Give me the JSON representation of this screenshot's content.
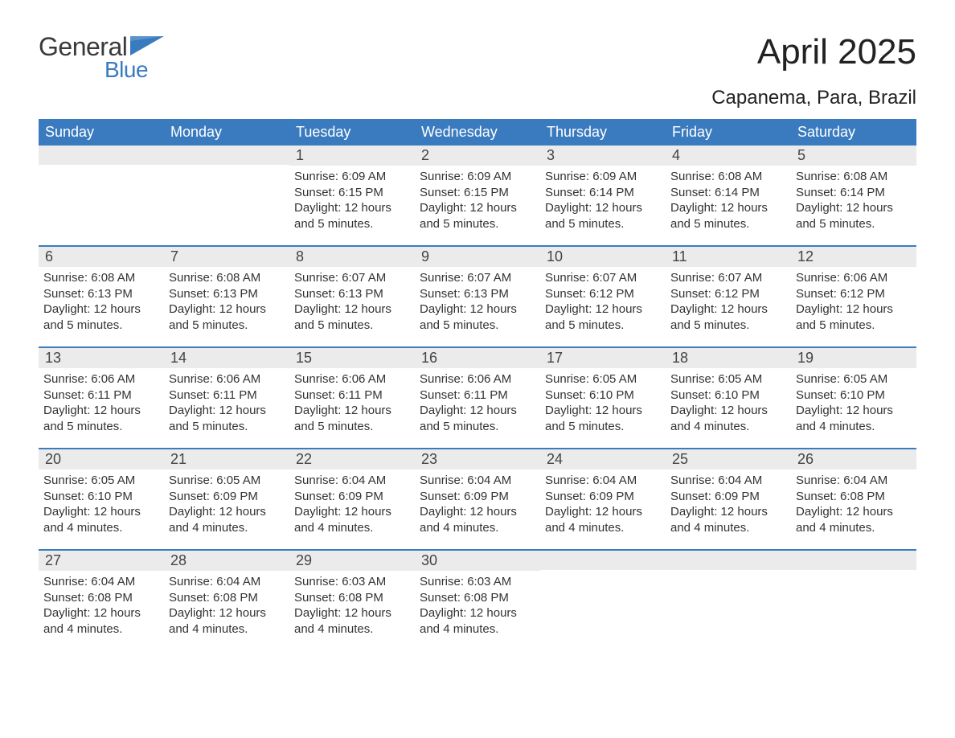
{
  "logo": {
    "word1": "General",
    "word2": "Blue"
  },
  "title": "April 2025",
  "location": "Capanema, Para, Brazil",
  "colors": {
    "header_bg": "#3a7bbf",
    "header_text": "#ffffff",
    "daynum_bg": "#ebebeb",
    "body_text": "#333333",
    "rule": "#3a7bbf",
    "page_bg": "#ffffff",
    "logo_gray": "#3a3a3a",
    "logo_blue": "#3a7bbf"
  },
  "typography": {
    "title_fontsize": 44,
    "location_fontsize": 24,
    "dow_fontsize": 18,
    "daynum_fontsize": 18,
    "body_fontsize": 15
  },
  "days_of_week": [
    "Sunday",
    "Monday",
    "Tuesday",
    "Wednesday",
    "Thursday",
    "Friday",
    "Saturday"
  ],
  "labels": {
    "sunrise": "Sunrise: ",
    "sunset": "Sunset: ",
    "daylight": "Daylight: "
  },
  "weeks": [
    [
      null,
      null,
      {
        "n": "1",
        "sunrise": "6:09 AM",
        "sunset": "6:15 PM",
        "daylight": "12 hours and 5 minutes."
      },
      {
        "n": "2",
        "sunrise": "6:09 AM",
        "sunset": "6:15 PM",
        "daylight": "12 hours and 5 minutes."
      },
      {
        "n": "3",
        "sunrise": "6:09 AM",
        "sunset": "6:14 PM",
        "daylight": "12 hours and 5 minutes."
      },
      {
        "n": "4",
        "sunrise": "6:08 AM",
        "sunset": "6:14 PM",
        "daylight": "12 hours and 5 minutes."
      },
      {
        "n": "5",
        "sunrise": "6:08 AM",
        "sunset": "6:14 PM",
        "daylight": "12 hours and 5 minutes."
      }
    ],
    [
      {
        "n": "6",
        "sunrise": "6:08 AM",
        "sunset": "6:13 PM",
        "daylight": "12 hours and 5 minutes."
      },
      {
        "n": "7",
        "sunrise": "6:08 AM",
        "sunset": "6:13 PM",
        "daylight": "12 hours and 5 minutes."
      },
      {
        "n": "8",
        "sunrise": "6:07 AM",
        "sunset": "6:13 PM",
        "daylight": "12 hours and 5 minutes."
      },
      {
        "n": "9",
        "sunrise": "6:07 AM",
        "sunset": "6:13 PM",
        "daylight": "12 hours and 5 minutes."
      },
      {
        "n": "10",
        "sunrise": "6:07 AM",
        "sunset": "6:12 PM",
        "daylight": "12 hours and 5 minutes."
      },
      {
        "n": "11",
        "sunrise": "6:07 AM",
        "sunset": "6:12 PM",
        "daylight": "12 hours and 5 minutes."
      },
      {
        "n": "12",
        "sunrise": "6:06 AM",
        "sunset": "6:12 PM",
        "daylight": "12 hours and 5 minutes."
      }
    ],
    [
      {
        "n": "13",
        "sunrise": "6:06 AM",
        "sunset": "6:11 PM",
        "daylight": "12 hours and 5 minutes."
      },
      {
        "n": "14",
        "sunrise": "6:06 AM",
        "sunset": "6:11 PM",
        "daylight": "12 hours and 5 minutes."
      },
      {
        "n": "15",
        "sunrise": "6:06 AM",
        "sunset": "6:11 PM",
        "daylight": "12 hours and 5 minutes."
      },
      {
        "n": "16",
        "sunrise": "6:06 AM",
        "sunset": "6:11 PM",
        "daylight": "12 hours and 5 minutes."
      },
      {
        "n": "17",
        "sunrise": "6:05 AM",
        "sunset": "6:10 PM",
        "daylight": "12 hours and 5 minutes."
      },
      {
        "n": "18",
        "sunrise": "6:05 AM",
        "sunset": "6:10 PM",
        "daylight": "12 hours and 4 minutes."
      },
      {
        "n": "19",
        "sunrise": "6:05 AM",
        "sunset": "6:10 PM",
        "daylight": "12 hours and 4 minutes."
      }
    ],
    [
      {
        "n": "20",
        "sunrise": "6:05 AM",
        "sunset": "6:10 PM",
        "daylight": "12 hours and 4 minutes."
      },
      {
        "n": "21",
        "sunrise": "6:05 AM",
        "sunset": "6:09 PM",
        "daylight": "12 hours and 4 minutes."
      },
      {
        "n": "22",
        "sunrise": "6:04 AM",
        "sunset": "6:09 PM",
        "daylight": "12 hours and 4 minutes."
      },
      {
        "n": "23",
        "sunrise": "6:04 AM",
        "sunset": "6:09 PM",
        "daylight": "12 hours and 4 minutes."
      },
      {
        "n": "24",
        "sunrise": "6:04 AM",
        "sunset": "6:09 PM",
        "daylight": "12 hours and 4 minutes."
      },
      {
        "n": "25",
        "sunrise": "6:04 AM",
        "sunset": "6:09 PM",
        "daylight": "12 hours and 4 minutes."
      },
      {
        "n": "26",
        "sunrise": "6:04 AM",
        "sunset": "6:08 PM",
        "daylight": "12 hours and 4 minutes."
      }
    ],
    [
      {
        "n": "27",
        "sunrise": "6:04 AM",
        "sunset": "6:08 PM",
        "daylight": "12 hours and 4 minutes."
      },
      {
        "n": "28",
        "sunrise": "6:04 AM",
        "sunset": "6:08 PM",
        "daylight": "12 hours and 4 minutes."
      },
      {
        "n": "29",
        "sunrise": "6:03 AM",
        "sunset": "6:08 PM",
        "daylight": "12 hours and 4 minutes."
      },
      {
        "n": "30",
        "sunrise": "6:03 AM",
        "sunset": "6:08 PM",
        "daylight": "12 hours and 4 minutes."
      },
      null,
      null,
      null
    ]
  ]
}
